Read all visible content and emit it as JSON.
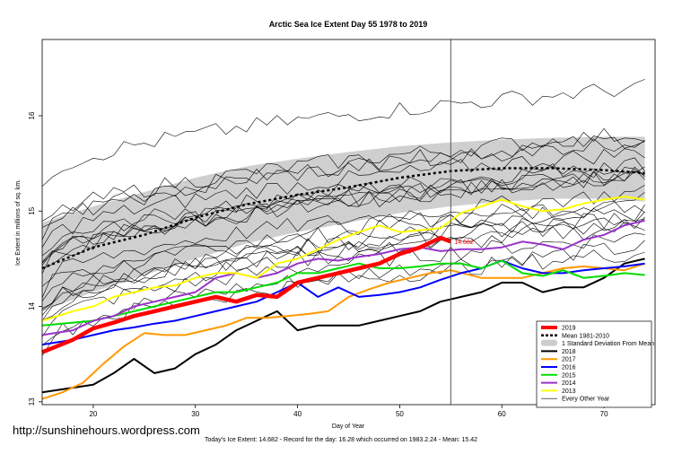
{
  "chart_data": {
    "type": "line",
    "title": "Arctic Sea Ice Extent Day 55 1978 to 2019",
    "xlabel": "Day of Year",
    "ylabel": "Ice Extent in millions of sq. km.",
    "xlim": [
      15,
      75
    ],
    "ylim": [
      12.97,
      16.8
    ],
    "x_ticks": [
      20,
      30,
      40,
      50,
      60,
      70
    ],
    "y_ticks": [
      13,
      14,
      15,
      16
    ],
    "grid": false,
    "legend_position": "bottom-right",
    "current_day_marker": 55,
    "annotation": {
      "text": "14.682",
      "x": 55,
      "y": 14.682
    },
    "mean_band": {
      "x": [
        15,
        20,
        25,
        30,
        35,
        40,
        45,
        50,
        55,
        60,
        65,
        70,
        74
      ],
      "mean": [
        14.4,
        14.62,
        14.75,
        14.93,
        15.07,
        15.17,
        15.25,
        15.35,
        15.42,
        15.45,
        15.45,
        15.43,
        15.4
      ],
      "upper": [
        14.88,
        15.05,
        15.2,
        15.35,
        15.47,
        15.55,
        15.62,
        15.68,
        15.72,
        15.75,
        15.77,
        15.78,
        15.78
      ],
      "lower": [
        13.95,
        14.15,
        14.33,
        14.5,
        14.66,
        14.78,
        14.88,
        14.98,
        15.05,
        15.1,
        15.13,
        15.13,
        15.1
      ]
    },
    "series": [
      {
        "name": "2019",
        "color": "#ff0000",
        "x": [
          15,
          18,
          20,
          22,
          24,
          26,
          28,
          30,
          32,
          34,
          36,
          38,
          40,
          42,
          44,
          46,
          48,
          50,
          52,
          54,
          55
        ],
        "y": [
          13.52,
          13.65,
          13.77,
          13.83,
          13.9,
          13.95,
          14.0,
          14.05,
          14.1,
          14.05,
          14.12,
          14.1,
          14.25,
          14.3,
          14.35,
          14.4,
          14.45,
          14.55,
          14.62,
          14.72,
          14.68
        ]
      },
      {
        "name": "2018",
        "color": "#000000",
        "x": [
          15,
          20,
          22,
          24,
          26,
          28,
          30,
          32,
          34,
          36,
          38,
          40,
          42,
          44,
          46,
          48,
          50,
          52,
          54,
          56,
          58,
          60,
          62,
          64,
          66,
          68,
          70,
          72,
          74
        ],
        "y": [
          13.1,
          13.18,
          13.3,
          13.45,
          13.3,
          13.35,
          13.5,
          13.6,
          13.75,
          13.85,
          13.95,
          13.75,
          13.8,
          13.8,
          13.8,
          13.85,
          13.9,
          13.95,
          14.05,
          14.1,
          14.15,
          14.25,
          14.25,
          14.15,
          14.2,
          14.2,
          14.3,
          14.45,
          14.5
        ]
      },
      {
        "name": "2017",
        "color": "#ff9900",
        "x": [
          15,
          17,
          19,
          21,
          23,
          25,
          27,
          29,
          31,
          33,
          35,
          37,
          39,
          41,
          43,
          45,
          47,
          49,
          51,
          53,
          55,
          58,
          60,
          62,
          64,
          66,
          68,
          70,
          72,
          74
        ],
        "y": [
          13.03,
          13.1,
          13.2,
          13.4,
          13.58,
          13.72,
          13.7,
          13.7,
          13.75,
          13.8,
          13.88,
          13.88,
          13.9,
          13.92,
          13.95,
          14.1,
          14.18,
          14.25,
          14.3,
          14.35,
          14.38,
          14.3,
          14.3,
          14.3,
          14.35,
          14.4,
          14.42,
          14.4,
          14.38,
          14.45
        ]
      },
      {
        "name": "2016",
        "color": "#0000ff",
        "x": [
          15,
          18,
          20,
          22,
          24,
          26,
          28,
          30,
          32,
          34,
          36,
          38,
          40,
          42,
          44,
          46,
          48,
          50,
          52,
          54,
          56,
          58,
          60,
          62,
          64,
          66,
          68,
          70,
          72,
          74
        ],
        "y": [
          13.6,
          13.65,
          13.7,
          13.75,
          13.78,
          13.82,
          13.85,
          13.9,
          13.95,
          14.0,
          14.05,
          14.15,
          14.25,
          14.1,
          14.2,
          14.1,
          14.12,
          14.15,
          14.2,
          14.28,
          14.35,
          14.4,
          14.48,
          14.4,
          14.35,
          14.35,
          14.38,
          14.4,
          14.42,
          14.45
        ]
      },
      {
        "name": "2015",
        "color": "#00dd00",
        "x": [
          15,
          18,
          20,
          22,
          24,
          26,
          28,
          30,
          32,
          34,
          36,
          38,
          40,
          42,
          44,
          46,
          48,
          50,
          52,
          54,
          56,
          58,
          60,
          62,
          64,
          66,
          68,
          70,
          72,
          74
        ],
        "y": [
          13.8,
          13.83,
          13.85,
          13.9,
          13.95,
          14.0,
          14.05,
          14.1,
          14.15,
          14.15,
          14.2,
          14.25,
          14.35,
          14.35,
          14.4,
          14.45,
          14.4,
          14.4,
          14.42,
          14.45,
          14.45,
          14.4,
          14.48,
          14.35,
          14.32,
          14.38,
          14.3,
          14.32,
          14.35,
          14.33
        ]
      },
      {
        "name": "2014",
        "color": "#9933cc",
        "x": [
          15,
          18,
          20,
          22,
          24,
          26,
          28,
          30,
          32,
          34,
          36,
          38,
          40,
          42,
          44,
          46,
          48,
          50,
          52,
          54,
          56,
          58,
          60,
          62,
          64,
          66,
          68,
          70,
          72,
          74
        ],
        "y": [
          13.7,
          13.75,
          13.85,
          13.9,
          14.0,
          14.05,
          14.1,
          14.15,
          14.3,
          14.35,
          14.3,
          14.35,
          14.45,
          14.5,
          14.48,
          14.52,
          14.55,
          14.6,
          14.62,
          14.58,
          14.6,
          14.6,
          14.62,
          14.68,
          14.65,
          14.6,
          14.7,
          14.75,
          14.85,
          14.9
        ]
      },
      {
        "name": "2013",
        "color": "#ffff00",
        "x": [
          15,
          18,
          20,
          22,
          24,
          26,
          28,
          30,
          32,
          34,
          36,
          38,
          40,
          42,
          44,
          46,
          48,
          50,
          52,
          54,
          56,
          58,
          60,
          62,
          64,
          66,
          68,
          70,
          72,
          74
        ],
        "y": [
          13.85,
          13.95,
          14.0,
          14.1,
          14.15,
          14.2,
          14.22,
          14.3,
          14.35,
          14.35,
          14.3,
          14.45,
          14.5,
          14.6,
          14.7,
          14.78,
          14.85,
          14.78,
          14.8,
          14.82,
          14.98,
          15.05,
          15.12,
          15.05,
          15.0,
          15.02,
          15.08,
          15.12,
          15.15,
          15.12
        ]
      }
    ],
    "legend": [
      {
        "label": "2019",
        "kind": "line",
        "color": "#ff0000",
        "width": 4
      },
      {
        "label": "Mean 1981-2010",
        "kind": "dash",
        "color": "#000000",
        "width": 2.5
      },
      {
        "label": "1 Standard Deviation From Mean",
        "kind": "box",
        "color": "#cccccc",
        "width": 0
      },
      {
        "label": "2018",
        "kind": "line",
        "color": "#000000",
        "width": 2
      },
      {
        "label": "2017",
        "kind": "line",
        "color": "#ff9900",
        "width": 2
      },
      {
        "label": "2016",
        "kind": "line",
        "color": "#0000ff",
        "width": 2
      },
      {
        "label": "2015",
        "kind": "line",
        "color": "#00dd00",
        "width": 2
      },
      {
        "label": "2014",
        "kind": "line",
        "color": "#9933cc",
        "width": 2
      },
      {
        "label": "2013",
        "kind": "line",
        "color": "#ffff00",
        "width": 2
      },
      {
        "label": "Every Other Year",
        "kind": "line",
        "color": "#000000",
        "width": 0.7
      }
    ]
  },
  "watermark_url": "http://sunshinehours.wordpress.com",
  "footer": "Today's Ice Extent: 14.682  - Record for the day: 16.28 which occurred on 1983.2.24  - Mean: 15.42"
}
